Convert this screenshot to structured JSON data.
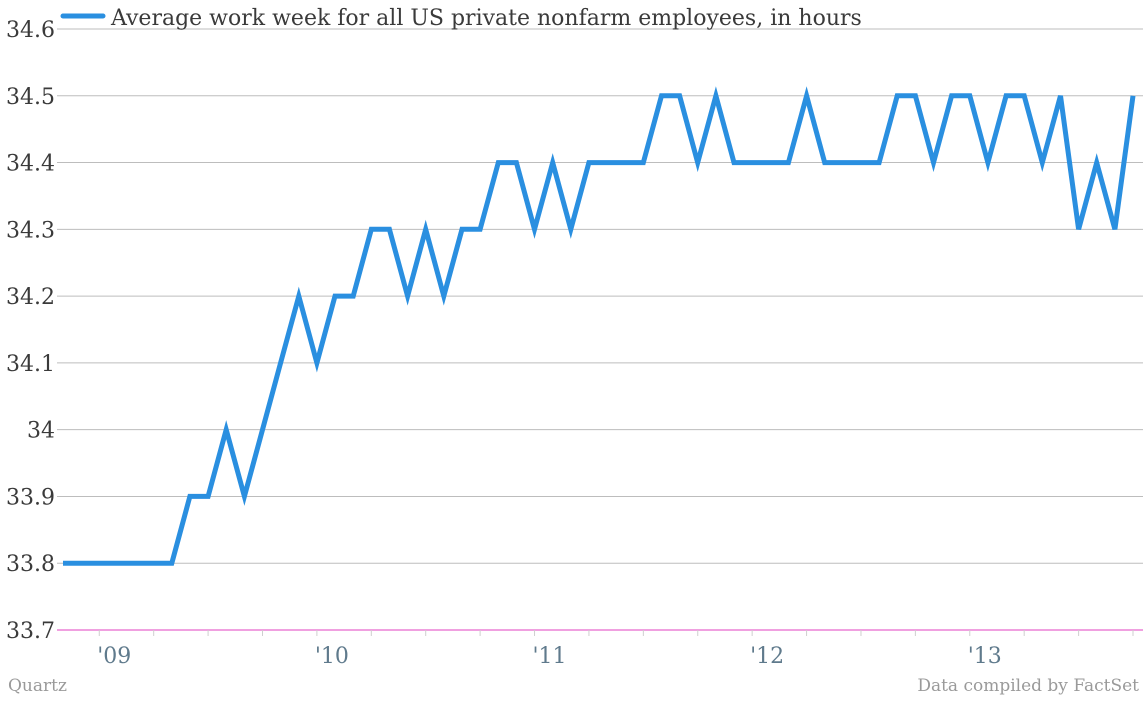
{
  "chart_data": {
    "type": "line",
    "series": [
      {
        "name": "Average work week for all US private nonfarm employees, in hours",
        "color": "#2a8fe0",
        "x": [
          "2008-11",
          "2008-12",
          "2009-01",
          "2009-02",
          "2009-03",
          "2009-04",
          "2009-05",
          "2009-06",
          "2009-07",
          "2009-08",
          "2009-09",
          "2009-10",
          "2009-11",
          "2009-12",
          "2010-01",
          "2010-02",
          "2010-03",
          "2010-04",
          "2010-05",
          "2010-06",
          "2010-07",
          "2010-08",
          "2010-09",
          "2010-10",
          "2010-11",
          "2010-12",
          "2011-01",
          "2011-02",
          "2011-03",
          "2011-04",
          "2011-05",
          "2011-06",
          "2011-07",
          "2011-08",
          "2011-09",
          "2011-10",
          "2011-11",
          "2011-12",
          "2012-01",
          "2012-02",
          "2012-03",
          "2012-04",
          "2012-05",
          "2012-06",
          "2012-07",
          "2012-08",
          "2012-09",
          "2012-10",
          "2012-11",
          "2012-12",
          "2013-01",
          "2013-02",
          "2013-03",
          "2013-04",
          "2013-05",
          "2013-06",
          "2013-07",
          "2013-08",
          "2013-09",
          "2013-10"
        ],
        "values": [
          33.8,
          33.8,
          33.8,
          33.8,
          33.8,
          33.8,
          33.8,
          33.9,
          33.9,
          34.0,
          33.9,
          34.0,
          34.1,
          34.2,
          34.1,
          34.2,
          34.2,
          34.3,
          34.3,
          34.2,
          34.3,
          34.2,
          34.3,
          34.3,
          34.4,
          34.4,
          34.3,
          34.4,
          34.3,
          34.4,
          34.4,
          34.4,
          34.4,
          34.5,
          34.5,
          34.4,
          34.5,
          34.4,
          34.4,
          34.4,
          34.4,
          34.5,
          34.4,
          34.4,
          34.4,
          34.4,
          34.5,
          34.5,
          34.4,
          34.5,
          34.5,
          34.4,
          34.5,
          34.5,
          34.4,
          34.5,
          34.3,
          34.4,
          34.3,
          34.5
        ]
      }
    ],
    "ylim": [
      33.7,
      34.6
    ],
    "yticks": [
      "33.7",
      "33.8",
      "33.9",
      "34",
      "34.1",
      "34.2",
      "34.3",
      "34.4",
      "34.5",
      "34.6"
    ],
    "xticks": [
      {
        "label": "'09",
        "date": "2009-01"
      },
      {
        "label": "'10",
        "date": "2010-01"
      },
      {
        "label": "'11",
        "date": "2011-01"
      },
      {
        "label": "'12",
        "date": "2012-01"
      },
      {
        "label": "'13",
        "date": "2013-01"
      }
    ],
    "xlim": [
      "2008-11",
      "2013-10"
    ],
    "grid": true,
    "legend": "top-left",
    "baseline_color": "#e040c0",
    "grid_color": "#bdbdbd"
  },
  "footer": {
    "credit_left": "Quartz",
    "credit_right": "Data compiled by FactSet"
  }
}
